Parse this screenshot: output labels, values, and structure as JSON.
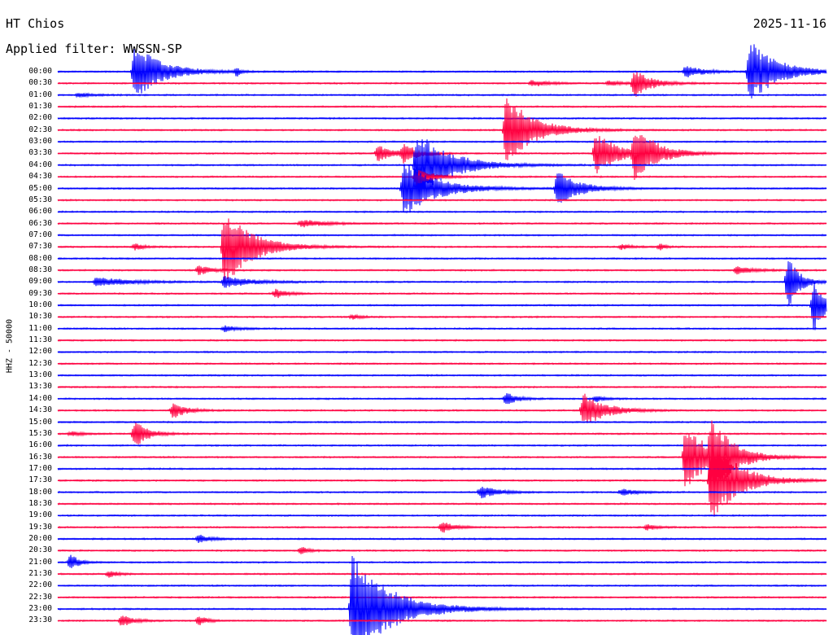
{
  "header": {
    "station": "HT Chios",
    "date": "2025-11-16",
    "filter": "Applied filter: WWSSN-SP"
  },
  "chart_data": {
    "type": "seismogram helicorder",
    "ylabel": "HHZ - 50000",
    "row_labels": [
      "00:00",
      "00:30",
      "01:00",
      "01:30",
      "02:00",
      "02:30",
      "03:00",
      "03:30",
      "04:00",
      "04:30",
      "05:00",
      "05:30",
      "06:00",
      "06:30",
      "07:00",
      "07:30",
      "08:00",
      "08:30",
      "09:00",
      "09:30",
      "10:00",
      "10:30",
      "11:00",
      "11:30",
      "12:00",
      "12:30",
      "13:00",
      "13:30",
      "14:00",
      "14:30",
      "15:00",
      "15:30",
      "16:00",
      "16:30",
      "17:00",
      "17:30",
      "18:00",
      "18:30",
      "19:00",
      "19:30",
      "20:00",
      "20:30",
      "21:00",
      "21:30",
      "22:00",
      "22:30",
      "23:00",
      "23:30"
    ],
    "row_minutes": 30,
    "line_colors": [
      "#0000ff",
      "#ff0040"
    ],
    "color_pattern": "alternating by row",
    "events": [
      {
        "row": "00:00",
        "minute": 3,
        "amplitude": 35,
        "duration": 2.5
      },
      {
        "row": "00:00",
        "minute": 7,
        "amplitude": 6,
        "duration": 0.3
      },
      {
        "row": "00:00",
        "minute": 24.5,
        "amplitude": 8,
        "duration": 1.5
      },
      {
        "row": "00:00",
        "minute": 27,
        "amplitude": 40,
        "duration": 2.5
      },
      {
        "row": "00:30",
        "minute": 18.5,
        "amplitude": 4,
        "duration": 1.5
      },
      {
        "row": "00:30",
        "minute": 21.5,
        "amplitude": 3,
        "duration": 1.2
      },
      {
        "row": "00:30",
        "minute": 22.5,
        "amplitude": 18,
        "duration": 1.5
      },
      {
        "row": "01:00",
        "minute": 0.8,
        "amplitude": 3,
        "duration": 1.2
      },
      {
        "row": "02:30",
        "minute": 17.5,
        "amplitude": 45,
        "duration": 2.5
      },
      {
        "row": "03:30",
        "minute": 12.5,
        "amplitude": 10,
        "duration": 1.5
      },
      {
        "row": "03:30",
        "minute": 13.5,
        "amplitude": 12,
        "duration": 1.2
      },
      {
        "row": "03:30",
        "minute": 21,
        "amplitude": 28,
        "duration": 2
      },
      {
        "row": "03:30",
        "minute": 22.5,
        "amplitude": 35,
        "duration": 2
      },
      {
        "row": "04:00",
        "minute": 14,
        "amplitude": 45,
        "duration": 3
      },
      {
        "row": "04:30",
        "minute": 14,
        "amplitude": 10,
        "duration": 1.5
      },
      {
        "row": "05:00",
        "minute": 13.5,
        "amplitude": 35,
        "duration": 3
      },
      {
        "row": "05:00",
        "minute": 19.5,
        "amplitude": 22,
        "duration": 2
      },
      {
        "row": "06:30",
        "minute": 9.5,
        "amplitude": 5,
        "duration": 2
      },
      {
        "row": "07:30",
        "minute": 6.5,
        "amplitude": 50,
        "duration": 2.5
      },
      {
        "row": "07:30",
        "minute": 3,
        "amplitude": 4,
        "duration": 0.8
      },
      {
        "row": "07:30",
        "minute": 22,
        "amplitude": 3,
        "duration": 1
      },
      {
        "row": "07:30",
        "minute": 23.5,
        "amplitude": 4,
        "duration": 0.5
      },
      {
        "row": "08:30",
        "minute": 5.5,
        "amplitude": 6,
        "duration": 1.2
      },
      {
        "row": "08:30",
        "minute": 26.5,
        "amplitude": 5,
        "duration": 1.5
      },
      {
        "row": "09:00",
        "minute": 1.5,
        "amplitude": 6,
        "duration": 3
      },
      {
        "row": "09:00",
        "minute": 6.5,
        "amplitude": 7,
        "duration": 2.5
      },
      {
        "row": "09:00",
        "minute": 28.5,
        "amplitude": 35,
        "duration": 1
      },
      {
        "row": "09:30",
        "minute": 8.5,
        "amplitude": 6,
        "duration": 1
      },
      {
        "row": "10:00",
        "minute": 29.5,
        "amplitude": 35,
        "duration": 1
      },
      {
        "row": "10:30",
        "minute": 11.5,
        "amplitude": 3,
        "duration": 0.8
      },
      {
        "row": "11:00",
        "minute": 6.5,
        "amplitude": 4,
        "duration": 1.2
      },
      {
        "row": "14:00",
        "minute": 17.5,
        "amplitude": 8,
        "duration": 1
      },
      {
        "row": "14:00",
        "minute": 21,
        "amplitude": 4,
        "duration": 0.8
      },
      {
        "row": "14:30",
        "minute": 4.5,
        "amplitude": 10,
        "duration": 1.2
      },
      {
        "row": "14:30",
        "minute": 20.5,
        "amplitude": 22,
        "duration": 2
      },
      {
        "row": "15:30",
        "minute": 3,
        "amplitude": 18,
        "duration": 1.2
      },
      {
        "row": "15:30",
        "minute": 0.5,
        "amplitude": 3,
        "duration": 1
      },
      {
        "row": "16:30",
        "minute": 24.5,
        "amplitude": 45,
        "duration": 2
      },
      {
        "row": "16:30",
        "minute": 25.5,
        "amplitude": 40,
        "duration": 2
      },
      {
        "row": "17:30",
        "minute": 25.5,
        "amplitude": 55,
        "duration": 2.5
      },
      {
        "row": "18:00",
        "minute": 16.5,
        "amplitude": 8,
        "duration": 1.5
      },
      {
        "row": "18:00",
        "minute": 22,
        "amplitude": 4,
        "duration": 1.5
      },
      {
        "row": "19:30",
        "minute": 15,
        "amplitude": 8,
        "duration": 1
      },
      {
        "row": "19:30",
        "minute": 23,
        "amplitude": 4,
        "duration": 0.8
      },
      {
        "row": "20:00",
        "minute": 5.5,
        "amplitude": 6,
        "duration": 1
      },
      {
        "row": "20:30",
        "minute": 9.5,
        "amplitude": 6,
        "duration": 0.6
      },
      {
        "row": "21:00",
        "minute": 0.5,
        "amplitude": 10,
        "duration": 0.8
      },
      {
        "row": "21:30",
        "minute": 2,
        "amplitude": 4,
        "duration": 0.8
      },
      {
        "row": "23:00",
        "minute": 11.5,
        "amplitude": 70,
        "duration": 3.5
      },
      {
        "row": "23:30",
        "minute": 2.5,
        "amplitude": 8,
        "duration": 1
      },
      {
        "row": "23:30",
        "minute": 5.5,
        "amplitude": 6,
        "duration": 0.8
      }
    ]
  }
}
